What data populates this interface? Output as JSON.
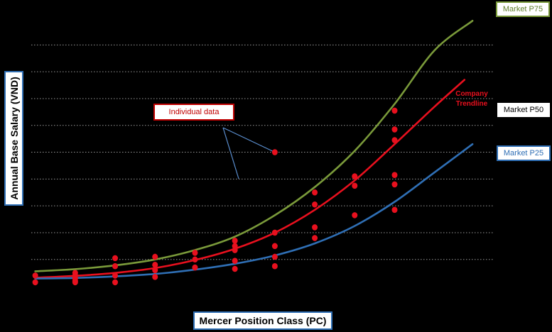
{
  "chart_data": {
    "type": "scatter",
    "title": "",
    "xlabel": "Mercer Position Class (PC)",
    "ylabel": "Annual Base Salary (VND)",
    "xlim": [
      0.9,
      12.5
    ],
    "ylim": [
      0,
      100
    ],
    "grid": "horizontal dotted",
    "series": [
      {
        "name": "Market P75",
        "kind": "curve",
        "color": "#7a9a3a",
        "points": [
          [
            1,
            3.6
          ],
          [
            2,
            4.4
          ],
          [
            3,
            5.8
          ],
          [
            4,
            8.0
          ],
          [
            5,
            11.5
          ],
          [
            6,
            16.5
          ],
          [
            7,
            24.5
          ],
          [
            8,
            35.0
          ],
          [
            9,
            48.5
          ],
          [
            10,
            66.0
          ],
          [
            11,
            86.0
          ],
          [
            11.95,
            97.0
          ]
        ]
      },
      {
        "name": "Company Trendline",
        "kind": "curve",
        "color": "#e8101e",
        "points": [
          [
            1,
            1.2
          ],
          [
            2,
            1.9
          ],
          [
            3,
            3.0
          ],
          [
            4,
            4.8
          ],
          [
            5,
            7.8
          ],
          [
            6,
            12.0
          ],
          [
            7,
            18.0
          ],
          [
            8,
            26.5
          ],
          [
            9,
            37.5
          ],
          [
            10,
            51.0
          ],
          [
            11,
            65.0
          ],
          [
            11.75,
            75.0
          ]
        ]
      },
      {
        "name": "Market P25",
        "kind": "curve",
        "color": "#2f6fb5",
        "points": [
          [
            1,
            0.9
          ],
          [
            2,
            1.1
          ],
          [
            3,
            1.7
          ],
          [
            4,
            2.6
          ],
          [
            5,
            4.2
          ],
          [
            6,
            6.4
          ],
          [
            7,
            9.5
          ],
          [
            8,
            14.0
          ],
          [
            9,
            20.5
          ],
          [
            10,
            29.5
          ],
          [
            11,
            40.5
          ],
          [
            11.95,
            51.0
          ]
        ]
      },
      {
        "name": "Individual data",
        "kind": "points",
        "color": "#e8101e",
        "points": [
          [
            1,
            2.0
          ],
          [
            1,
            -0.5
          ],
          [
            2,
            3.0
          ],
          [
            2,
            2.0
          ],
          [
            2,
            1.0
          ],
          [
            2,
            0.0
          ],
          [
            2,
            -0.5
          ],
          [
            3,
            8.5
          ],
          [
            3,
            5.5
          ],
          [
            3,
            2.0
          ],
          [
            3,
            -0.5
          ],
          [
            4,
            9.0
          ],
          [
            4,
            6.0
          ],
          [
            4,
            4.0
          ],
          [
            4,
            1.5
          ],
          [
            5,
            10.5
          ],
          [
            5,
            8.0
          ],
          [
            5,
            5.0
          ],
          [
            6,
            15.0
          ],
          [
            6,
            13.0
          ],
          [
            6,
            11.5
          ],
          [
            6,
            7.5
          ],
          [
            6,
            4.5
          ],
          [
            7,
            48.0
          ],
          [
            7,
            18.0
          ],
          [
            7,
            13.0
          ],
          [
            7,
            9.0
          ],
          [
            7,
            5.5
          ],
          [
            8,
            33.0
          ],
          [
            8,
            28.5
          ],
          [
            8,
            20.0
          ],
          [
            8,
            16.0
          ],
          [
            9,
            39.0
          ],
          [
            9,
            35.5
          ],
          [
            9,
            24.5
          ],
          [
            10,
            63.5
          ],
          [
            10,
            56.5
          ],
          [
            10,
            52.5
          ],
          [
            10,
            39.5
          ],
          [
            10,
            36.0
          ],
          [
            10,
            26.5
          ]
        ]
      }
    ],
    "annotations": {
      "market_p75": "Market P75",
      "market_p50": "Market P50",
      "market_p25": "Market P25",
      "company_trendline": "Company Trendline",
      "individual_data": "Individual data"
    },
    "gridline_values": [
      8,
      18,
      28,
      38,
      48,
      58,
      68,
      78,
      88
    ]
  }
}
